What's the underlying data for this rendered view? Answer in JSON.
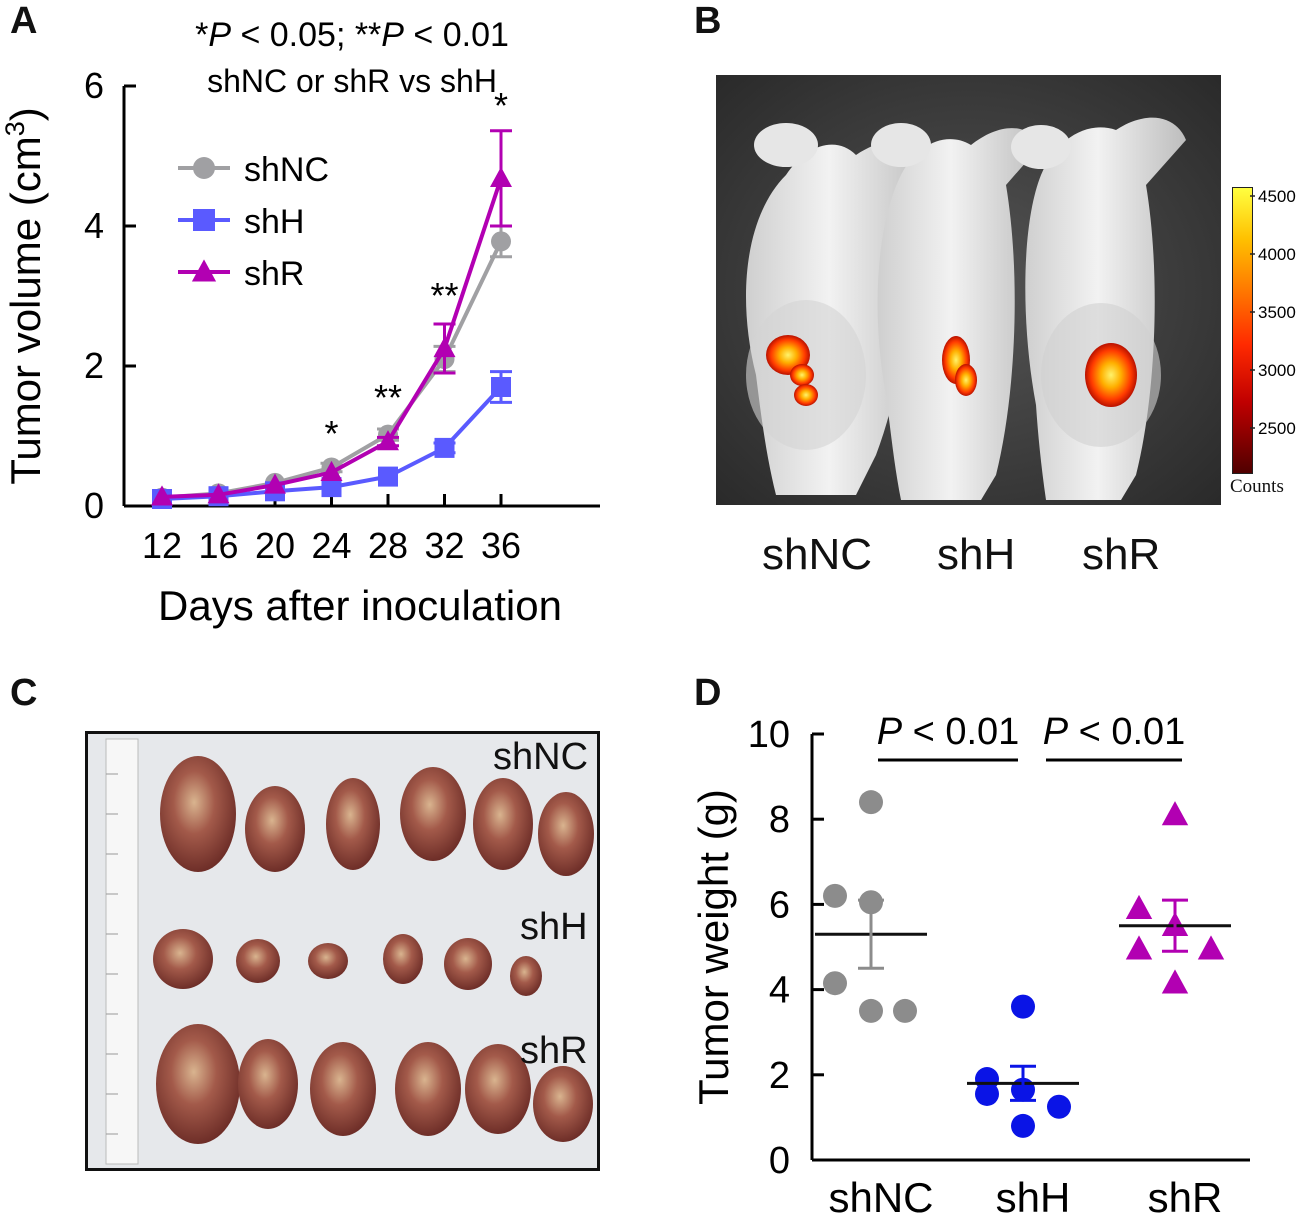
{
  "panels": {
    "a": "A",
    "b": "B",
    "c": "C",
    "d": "D"
  },
  "chart_data": [
    {
      "type": "line",
      "panel": "A",
      "annotation_line1": "*P < 0.05; **P < 0.01",
      "annotation_line2": "shNC or shR vs shH",
      "xlabel": "Days after inoculation",
      "ylabel": "Tumor volume (cm3)",
      "ylabel_main": "Tumor volume (cm",
      "ylabel_sup": "3",
      "ylabel_end": ")",
      "x": [
        12,
        16,
        20,
        24,
        28,
        32,
        36
      ],
      "ylim": [
        0,
        6
      ],
      "yticks": [
        0,
        2,
        4,
        6
      ],
      "legend_position": "top-left",
      "series": [
        {
          "name": "shNC",
          "marker": "circle",
          "color": "#a0a0a3",
          "values": [
            0.12,
            0.18,
            0.33,
            0.55,
            1.02,
            2.1,
            3.78
          ],
          "errors": [
            0.02,
            0.03,
            0.04,
            0.06,
            0.08,
            0.18,
            0.22
          ]
        },
        {
          "name": "shH",
          "marker": "square",
          "color": "#5a5aff",
          "values": [
            0.1,
            0.14,
            0.21,
            0.27,
            0.42,
            0.83,
            1.7
          ],
          "errors": [
            0.02,
            0.02,
            0.03,
            0.04,
            0.05,
            0.07,
            0.22
          ]
        },
        {
          "name": "shR",
          "marker": "triangle",
          "color": "#b200b2",
          "values": [
            0.13,
            0.16,
            0.3,
            0.48,
            0.92,
            2.25,
            4.68
          ],
          "errors": [
            0.02,
            0.02,
            0.04,
            0.05,
            0.06,
            0.35,
            0.68
          ]
        }
      ],
      "significance": [
        {
          "x": 24,
          "label": "*"
        },
        {
          "x": 28,
          "label": "**"
        },
        {
          "x": 32,
          "label": "**"
        },
        {
          "x": 36,
          "label": "*"
        }
      ]
    },
    {
      "type": "scatter",
      "panel": "D",
      "ylabel": "Tumor weight (g)",
      "categories": [
        "shNC",
        "shH",
        "shR"
      ],
      "ylim": [
        0,
        10
      ],
      "yticks": [
        0,
        2,
        4,
        6,
        8,
        10
      ],
      "series": [
        {
          "name": "shNC",
          "marker": "circle",
          "color": "#8c8c8c",
          "values": [
            8.4,
            6.2,
            6.05,
            4.15,
            3.5,
            3.5
          ],
          "mean": 5.3,
          "sem": 0.8
        },
        {
          "name": "shH",
          "marker": "circle",
          "color": "#0a14e6",
          "values": [
            3.6,
            1.9,
            1.65,
            1.55,
            1.25,
            0.8
          ],
          "mean": 1.8,
          "sem": 0.4
        },
        {
          "name": "shR",
          "marker": "triangle",
          "color": "#b200b2",
          "values": [
            8.1,
            5.9,
            5.5,
            4.95,
            4.95,
            4.15
          ],
          "mean": 5.5,
          "sem": 0.6
        }
      ],
      "comparisons": [
        {
          "between": [
            "shNC",
            "shH"
          ],
          "label": "P < 0.01"
        },
        {
          "between": [
            "shH",
            "shR"
          ],
          "label": "P < 0.01"
        }
      ]
    }
  ],
  "imaging": {
    "labels": [
      "shNC",
      "shH",
      "shR"
    ],
    "colorbar": {
      "ticks": [
        "4500",
        "4000",
        "3500",
        "3000",
        "2500"
      ],
      "caption": "Counts"
    }
  },
  "tumor_photo": {
    "rows": [
      "shNC",
      "shH",
      "shR"
    ]
  }
}
